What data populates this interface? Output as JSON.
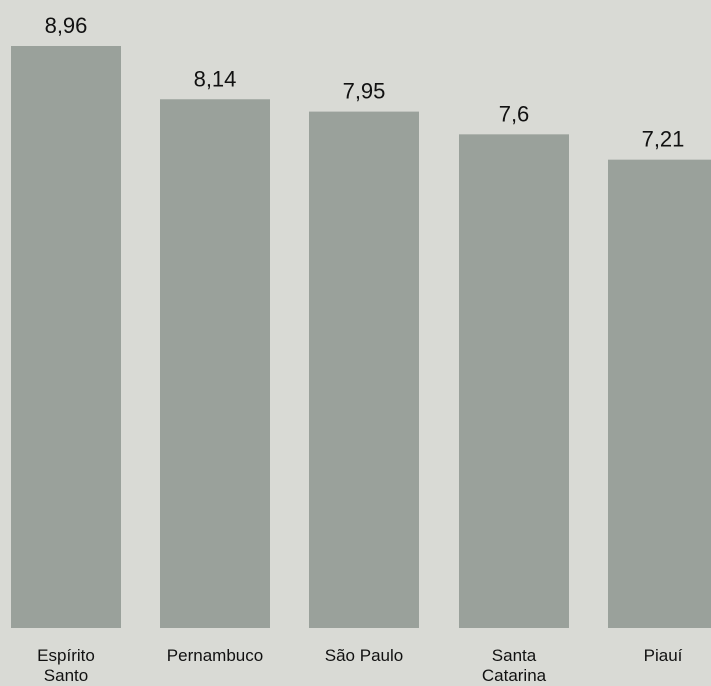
{
  "chart_data": {
    "type": "bar",
    "categories": [
      "Espírito Santo",
      "Pernambuco",
      "São Paulo",
      "Santa Catarina",
      "Piauí"
    ],
    "category_lines": [
      [
        "Espírito",
        "Santo"
      ],
      [
        "Pernambuco"
      ],
      [
        "São Paulo"
      ],
      [
        "Santa",
        "Catarina"
      ],
      [
        "Piauí"
      ]
    ],
    "values": [
      8.96,
      8.14,
      7.95,
      7.6,
      7.21
    ],
    "value_labels": [
      "8,96",
      "8,14",
      "7,95",
      "7,6",
      "7,21"
    ],
    "title": "",
    "xlabel": "",
    "ylabel": "",
    "grid": false,
    "legend": "none",
    "colors": {
      "background": "#d9dad5",
      "bar": "#9aa19b",
      "text": "#111111"
    }
  }
}
